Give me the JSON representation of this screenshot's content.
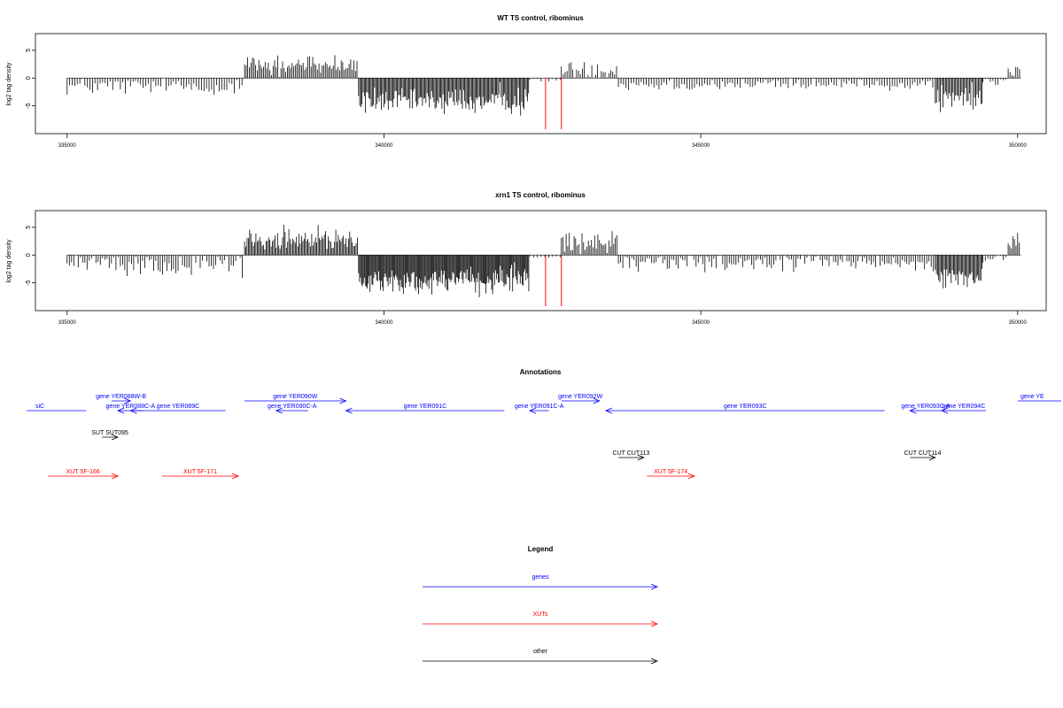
{
  "chart_data": [
    {
      "type": "bar",
      "title": "WT TS control, ribominus",
      "ylabel": "log2 tag density",
      "xlim": [
        334500,
        350450
      ],
      "ylim": [
        -10,
        8
      ],
      "x_ticks": [
        335000,
        340000,
        345000,
        350000
      ],
      "x_tick_labels": [
        "335000",
        "340000",
        "345000",
        "350000"
      ],
      "y_ticks": [
        -5,
        0,
        5
      ],
      "y_tick_labels": [
        "-5",
        "0",
        "5"
      ],
      "density_segments": [
        {
          "start": 335000,
          "end": 337800,
          "mean": -1.5,
          "spread": 1.5,
          "step": 40
        },
        {
          "start": 337800,
          "end": 339600,
          "mean": 2.3,
          "spread": 1.8,
          "step": 25
        },
        {
          "start": 339600,
          "end": 342300,
          "mean": -4.2,
          "spread": 2.2,
          "step": 18
        },
        {
          "start": 342300,
          "end": 342800,
          "mean": -0.3,
          "spread": 0.3,
          "step": 60
        },
        {
          "start": 342800,
          "end": 343700,
          "mean": 1.4,
          "spread": 1.5,
          "step": 30
        },
        {
          "start": 343700,
          "end": 348700,
          "mean": -1.1,
          "spread": 1.2,
          "step": 40
        },
        {
          "start": 348700,
          "end": 349450,
          "mean": -3.6,
          "spread": 2.0,
          "step": 20
        },
        {
          "start": 349450,
          "end": 349850,
          "mean": -0.8,
          "spread": 0.8,
          "step": 40
        },
        {
          "start": 349850,
          "end": 350050,
          "mean": 1.5,
          "spread": 1.2,
          "step": 30
        }
      ],
      "red_markers": [
        {
          "x": 342550,
          "y": -9.2
        },
        {
          "x": 342800,
          "y": -9.2
        }
      ],
      "colors": {
        "bars": "#000000",
        "markers": "#ff0000",
        "baseline": "#000000"
      }
    },
    {
      "type": "bar",
      "title": "xrn1 TS control, ribominus",
      "ylabel": "log2 tag density",
      "xlim": [
        334500,
        350450
      ],
      "ylim": [
        -10,
        8
      ],
      "x_ticks": [
        335000,
        340000,
        345000,
        350000
      ],
      "x_tick_labels": [
        "335000",
        "340000",
        "345000",
        "350000"
      ],
      "y_ticks": [
        -5,
        0,
        5
      ],
      "y_tick_labels": [
        "-5",
        "0",
        "5"
      ],
      "density_segments": [
        {
          "start": 335000,
          "end": 337800,
          "mean": -1.7,
          "spread": 1.8,
          "step": 35
        },
        {
          "start": 337800,
          "end": 339600,
          "mean": 2.8,
          "spread": 2.0,
          "step": 20
        },
        {
          "start": 339600,
          "end": 342300,
          "mean": -4.6,
          "spread": 2.3,
          "step": 15
        },
        {
          "start": 342300,
          "end": 342800,
          "mean": -0.3,
          "spread": 0.3,
          "step": 60
        },
        {
          "start": 342800,
          "end": 343700,
          "mean": 2.4,
          "spread": 1.8,
          "step": 25
        },
        {
          "start": 343700,
          "end": 348700,
          "mean": -1.4,
          "spread": 1.4,
          "step": 35
        },
        {
          "start": 348700,
          "end": 349450,
          "mean": -4.1,
          "spread": 2.0,
          "step": 18
        },
        {
          "start": 349450,
          "end": 349850,
          "mean": -0.8,
          "spread": 0.8,
          "step": 40
        },
        {
          "start": 349850,
          "end": 350050,
          "mean": 2.2,
          "spread": 1.5,
          "step": 25
        }
      ],
      "red_markers": [
        {
          "x": 342550,
          "y": -9.2
        },
        {
          "x": 342800,
          "y": -9.2
        }
      ],
      "colors": {
        "bars": "#000000",
        "markers": "#ff0000",
        "baseline": "#000000"
      }
    }
  ],
  "annotations": {
    "title": "Annotations",
    "xlim": [
      334500,
      350450
    ],
    "features": [
      {
        "label": "siC",
        "start": 334000,
        "end": 335300,
        "strand": "-",
        "row": 1,
        "type": "gene"
      },
      {
        "label": "gene YER088W-B",
        "start": 335700,
        "end": 336000,
        "strand": "+",
        "row": 0,
        "type": "gene"
      },
      {
        "label": "gene YER088C-A",
        "start": 335800,
        "end": 336200,
        "strand": "-",
        "row": 1,
        "type": "gene"
      },
      {
        "label": "gene YER089C",
        "start": 336000,
        "end": 337500,
        "strand": "-",
        "row": 1,
        "type": "gene"
      },
      {
        "label": "gene YER090W",
        "start": 337800,
        "end": 339400,
        "strand": "+",
        "row": 0,
        "type": "gene"
      },
      {
        "label": "gene YER090C-A",
        "start": 338300,
        "end": 338800,
        "strand": "-",
        "row": 1,
        "type": "gene"
      },
      {
        "label": "gene YER091C",
        "start": 339400,
        "end": 341900,
        "strand": "-",
        "row": 1,
        "type": "gene"
      },
      {
        "label": "gene YER091C-A",
        "start": 342300,
        "end": 342600,
        "strand": "-",
        "row": 1,
        "type": "gene"
      },
      {
        "label": "gene YER092W",
        "start": 342800,
        "end": 343400,
        "strand": "+",
        "row": 0,
        "type": "gene"
      },
      {
        "label": "gene YER093C",
        "start": 343500,
        "end": 347900,
        "strand": "-",
        "row": 1,
        "type": "gene"
      },
      {
        "label": "gene YER093C-A",
        "start": 348300,
        "end": 348800,
        "strand": "-",
        "row": 1,
        "type": "gene"
      },
      {
        "label": "gene YER094C",
        "start": 348800,
        "end": 349500,
        "strand": "-",
        "row": 1,
        "type": "gene"
      },
      {
        "label": "gene YE",
        "start": 350000,
        "end": 351000,
        "strand": "+",
        "row": 0,
        "type": "gene"
      },
      {
        "label": "SUT SUT095",
        "start": 335550,
        "end": 335800,
        "strand": "+",
        "row": 2,
        "type": "other"
      },
      {
        "label": "CUT CUT113",
        "start": 343700,
        "end": 344100,
        "strand": "+",
        "row": 3,
        "type": "other"
      },
      {
        "label": "CUT CUT114",
        "start": 348300,
        "end": 348700,
        "strand": "+",
        "row": 3,
        "type": "other"
      },
      {
        "label": "XUT 5F-166",
        "start": 334700,
        "end": 335800,
        "strand": "+",
        "row": 4,
        "type": "xut"
      },
      {
        "label": "XUT 5F-171",
        "start": 336500,
        "end": 337700,
        "strand": "+",
        "row": 4,
        "type": "xut"
      },
      {
        "label": "XUT 5F-174",
        "start": 344150,
        "end": 344900,
        "strand": "+",
        "row": 4,
        "type": "xut"
      }
    ]
  },
  "legend": {
    "title": "Legend",
    "items": [
      {
        "label": "genes",
        "color": "#0000ff"
      },
      {
        "label": "XUTs",
        "color": "#ff0000"
      },
      {
        "label": "other",
        "color": "#000000"
      }
    ]
  },
  "colors": {
    "gene": "#0000ff",
    "xut": "#ff0000",
    "other": "#000000"
  }
}
